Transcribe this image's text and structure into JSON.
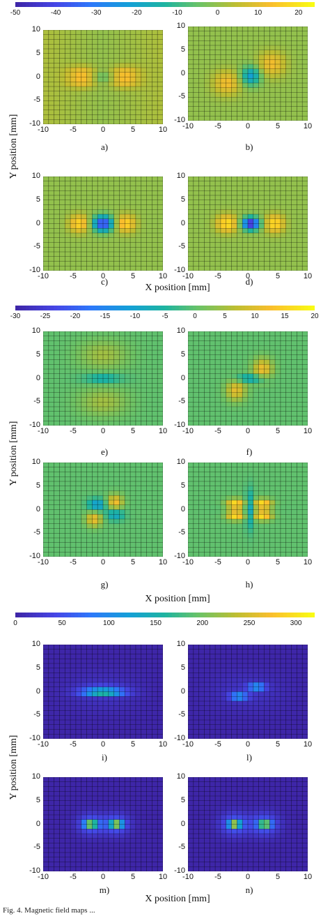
{
  "chart_data": [
    {
      "type": "heatmap",
      "group": "a-d",
      "colorbar": {
        "ticks": [
          -50,
          -40,
          -30,
          -20,
          -10,
          0,
          10,
          20
        ],
        "range": [
          -50,
          24
        ]
      },
      "xlabel": "X position [mm]",
      "ylabel": "Y position [mm]",
      "xlim": [
        -10,
        10
      ],
      "ylim": [
        -10,
        10
      ],
      "xticks": [
        -10,
        -5,
        0,
        5,
        10
      ],
      "yticks": [
        10,
        5,
        0,
        -5,
        -10
      ],
      "grid": true,
      "panels": [
        {
          "label": "a)",
          "pattern": "a",
          "min": -8,
          "max": 14
        },
        {
          "label": "b)",
          "pattern": "b",
          "min": -22,
          "max": 14
        },
        {
          "label": "c)",
          "pattern": "c",
          "min": -42,
          "max": 18
        },
        {
          "label": "d)",
          "pattern": "d",
          "min": -48,
          "max": 20
        }
      ]
    },
    {
      "type": "heatmap",
      "group": "e-h",
      "colorbar": {
        "ticks": [
          -30,
          -25,
          -20,
          -15,
          -10,
          -5,
          0,
          5,
          10,
          15,
          20
        ],
        "range": [
          -30,
          20
        ]
      },
      "xlabel": "X position [mm]",
      "ylabel": "Y position [mm]",
      "xlim": [
        -10,
        10
      ],
      "ylim": [
        -10,
        10
      ],
      "xticks": [
        -10,
        -5,
        0,
        5,
        10
      ],
      "yticks": [
        10,
        5,
        0,
        -5,
        -10
      ],
      "grid": true,
      "panels": [
        {
          "label": "e)",
          "pattern": "e",
          "min": -28,
          "max": 6
        },
        {
          "label": "f)",
          "pattern": "f",
          "min": -14,
          "max": 12
        },
        {
          "label": "g)",
          "pattern": "g",
          "min": -12,
          "max": 13
        },
        {
          "label": "h)",
          "pattern": "h",
          "min": -10,
          "max": 18
        }
      ]
    },
    {
      "type": "heatmap",
      "group": "i-n",
      "colorbar": {
        "ticks": [
          0,
          50,
          100,
          150,
          200,
          250,
          300
        ],
        "range": [
          0,
          320
        ]
      },
      "xlabel": "X position [mm]",
      "ylabel": "Y position [mm]",
      "xlim": [
        -10,
        10
      ],
      "ylim": [
        -10,
        10
      ],
      "xticks": [
        -10,
        -5,
        0,
        5,
        10
      ],
      "yticks": [
        10,
        5,
        0,
        -5,
        -10
      ],
      "grid": true,
      "panels": [
        {
          "label": "i)",
          "pattern": "i",
          "min": 0,
          "max": 160
        },
        {
          "label": "l)",
          "pattern": "l",
          "min": 0,
          "max": 150
        },
        {
          "label": "m)",
          "pattern": "m",
          "min": 0,
          "max": 290
        },
        {
          "label": "n)",
          "pattern": "n",
          "min": 0,
          "max": 310
        }
      ]
    }
  ],
  "caption": "Fig. 4.  Magnetic field maps ..."
}
